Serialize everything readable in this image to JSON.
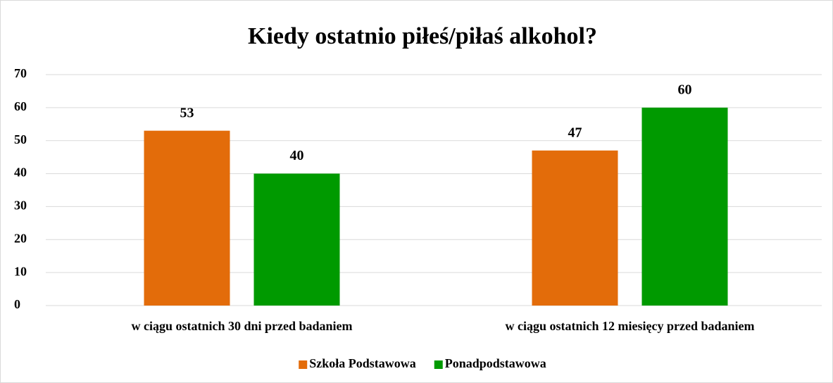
{
  "chart_data": {
    "type": "bar",
    "title": "Kiedy ostatnio piłeś/piłaś alkohol?",
    "categories": [
      "w ciągu ostatnich 30 dni przed badaniem",
      "w ciągu ostatnich 12 miesięcy przed badaniem"
    ],
    "series": [
      {
        "name": "Szkoła Podstawowa",
        "color": "#e36c0a",
        "values": [
          53,
          47
        ]
      },
      {
        "name": "Ponadpodstawowa",
        "color": "#009a00",
        "values": [
          40,
          60
        ]
      }
    ],
    "ylim": [
      0,
      70
    ],
    "yticks": [
      0,
      10,
      20,
      30,
      40,
      50,
      60,
      70
    ],
    "grid": true,
    "legend": "bottom"
  }
}
